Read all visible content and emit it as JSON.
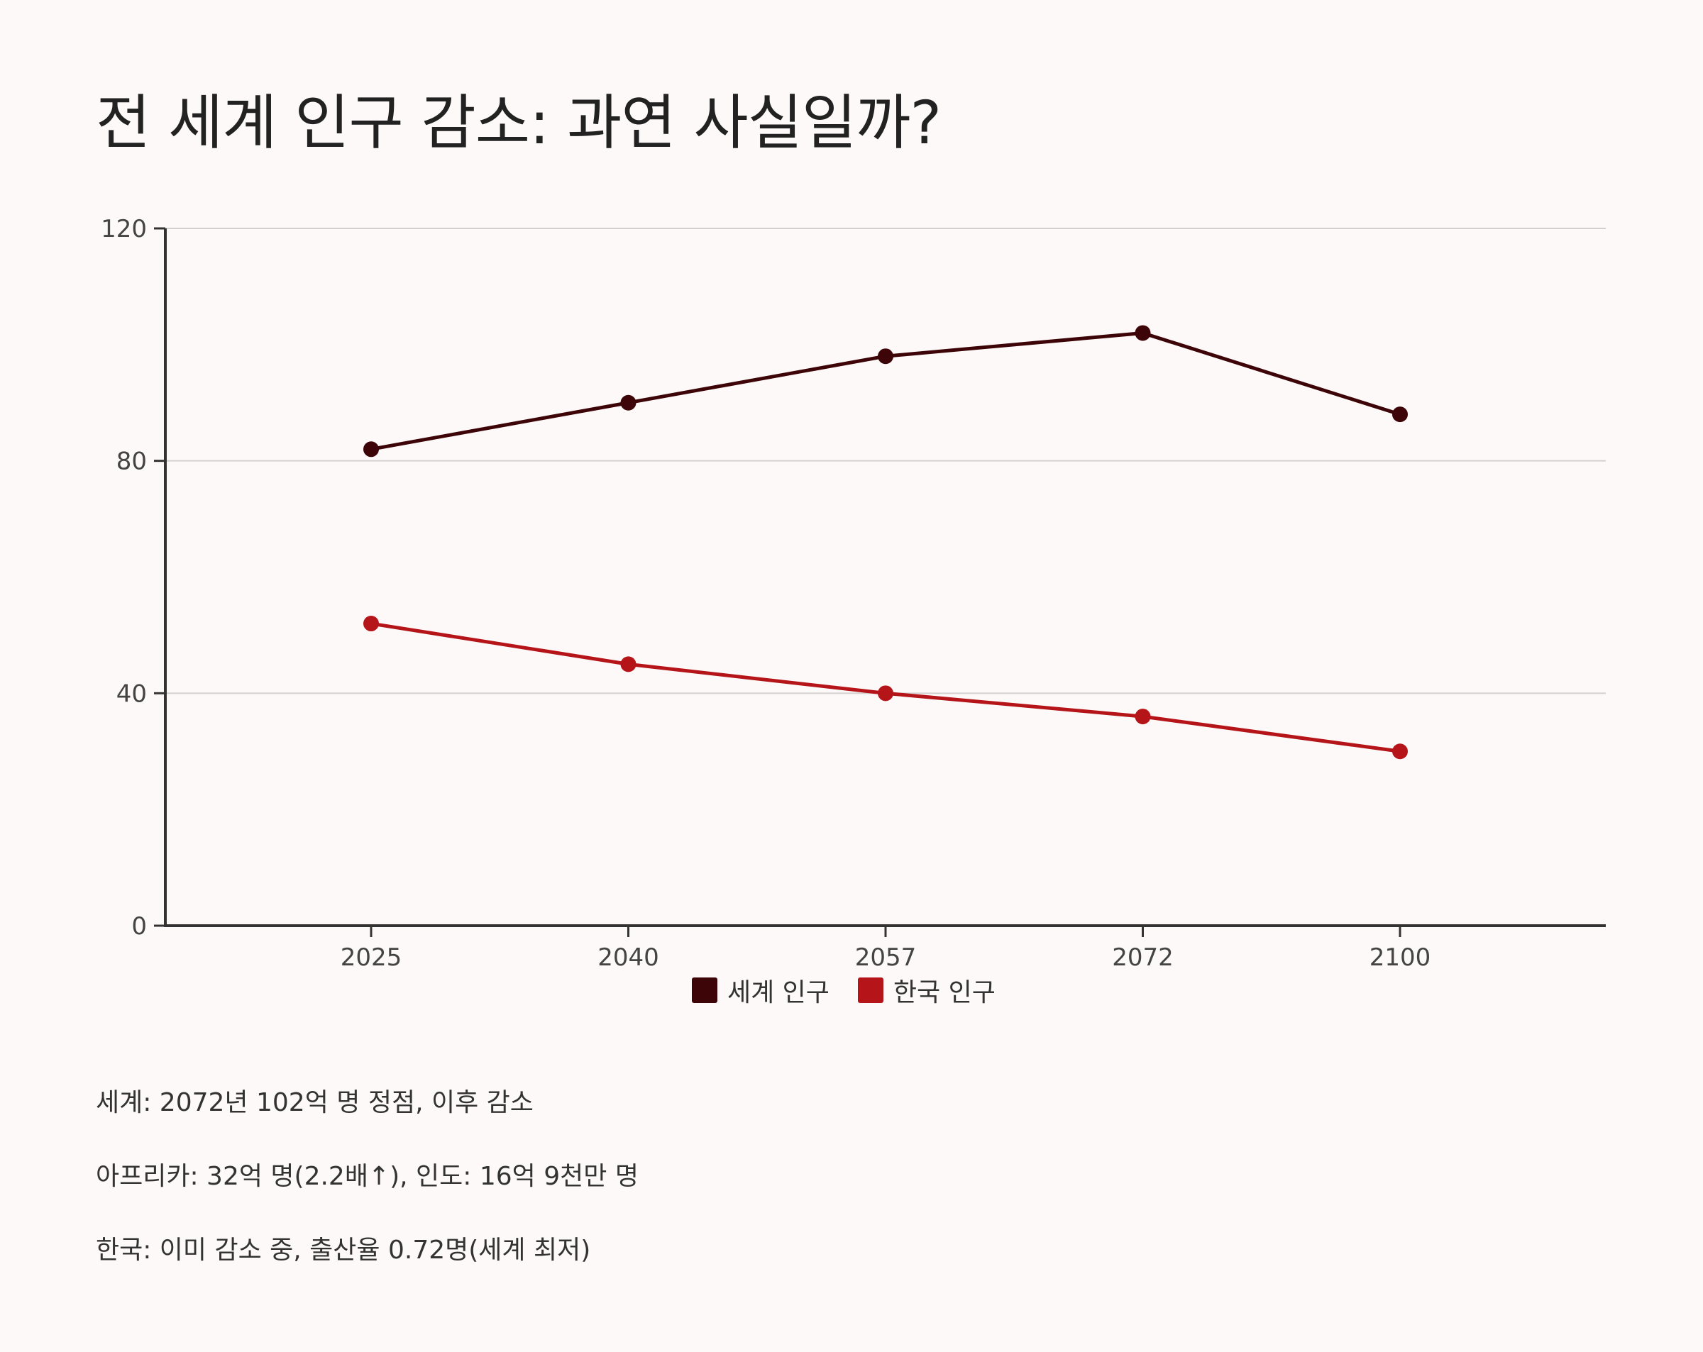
{
  "title": "전 세계 인구 감소: 과연 사실일까?",
  "chart_data": {
    "type": "line",
    "title": "전 세계 인구 감소: 과연 사실일까?",
    "categories": [
      "2025",
      "2040",
      "2057",
      "2072",
      "2100"
    ],
    "series": [
      {
        "name": "세계 인구",
        "color": "#3d0508",
        "values": [
          82,
          90,
          98,
          102,
          88
        ]
      },
      {
        "name": "한국 인구",
        "color": "#b51418",
        "values": [
          52,
          45,
          40,
          36,
          30
        ]
      }
    ],
    "ylim": [
      0,
      120
    ],
    "yticks": [
      0,
      40,
      80,
      120
    ],
    "grid": true,
    "legend_position": "bottom-center",
    "xlabel": "",
    "ylabel": ""
  },
  "legend": [
    {
      "label": "세계 인구",
      "color": "#3d0508"
    },
    {
      "label": "한국 인구",
      "color": "#b51418"
    }
  ],
  "notes": [
    "세계: 2072년 102억 명 정점, 이후 감소",
    "아프리카: 32억 명(2.2배↑), 인도: 16억 9천만 명",
    "한국: 이미 감소 중, 출산율 0.72명(세계 최저)"
  ]
}
